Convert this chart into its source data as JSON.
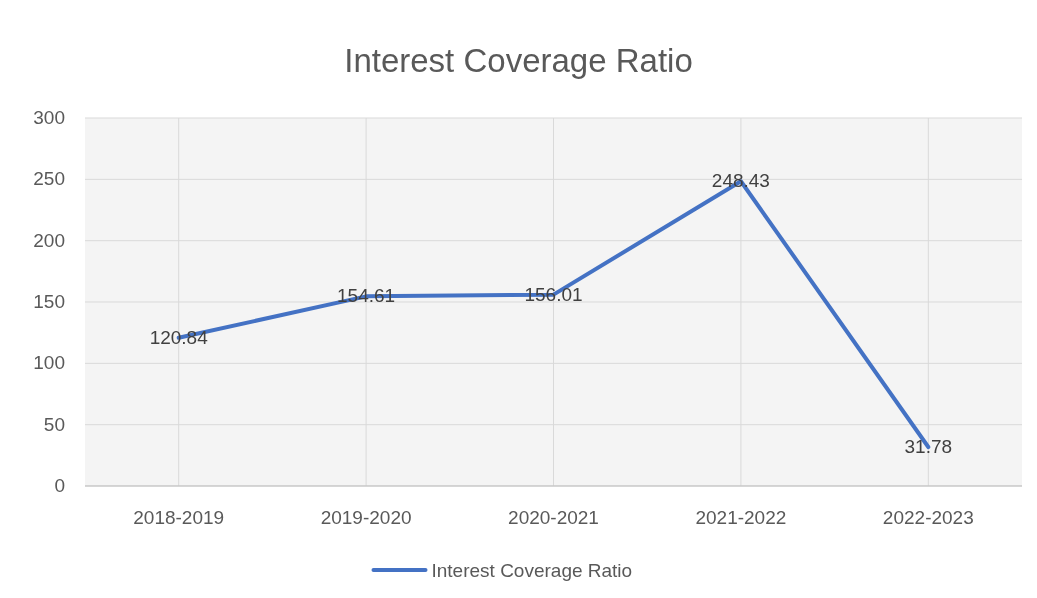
{
  "chart_data": {
    "type": "line",
    "title": "Interest Coverage Ratio",
    "categories": [
      "2018-2019",
      "2019-2020",
      "2020-2021",
      "2021-2022",
      "2022-2023"
    ],
    "series": [
      {
        "name": "Interest Coverage Ratio",
        "color": "#4472c4",
        "values": [
          120.84,
          154.61,
          156.01,
          248.43,
          31.78
        ]
      }
    ],
    "ylim": [
      0,
      300
    ],
    "yticks": [
      0,
      50,
      100,
      150,
      200,
      250,
      300
    ],
    "grid": true,
    "legend": "bottom",
    "data_labels": true,
    "marker": "none",
    "line_style": "solid"
  }
}
